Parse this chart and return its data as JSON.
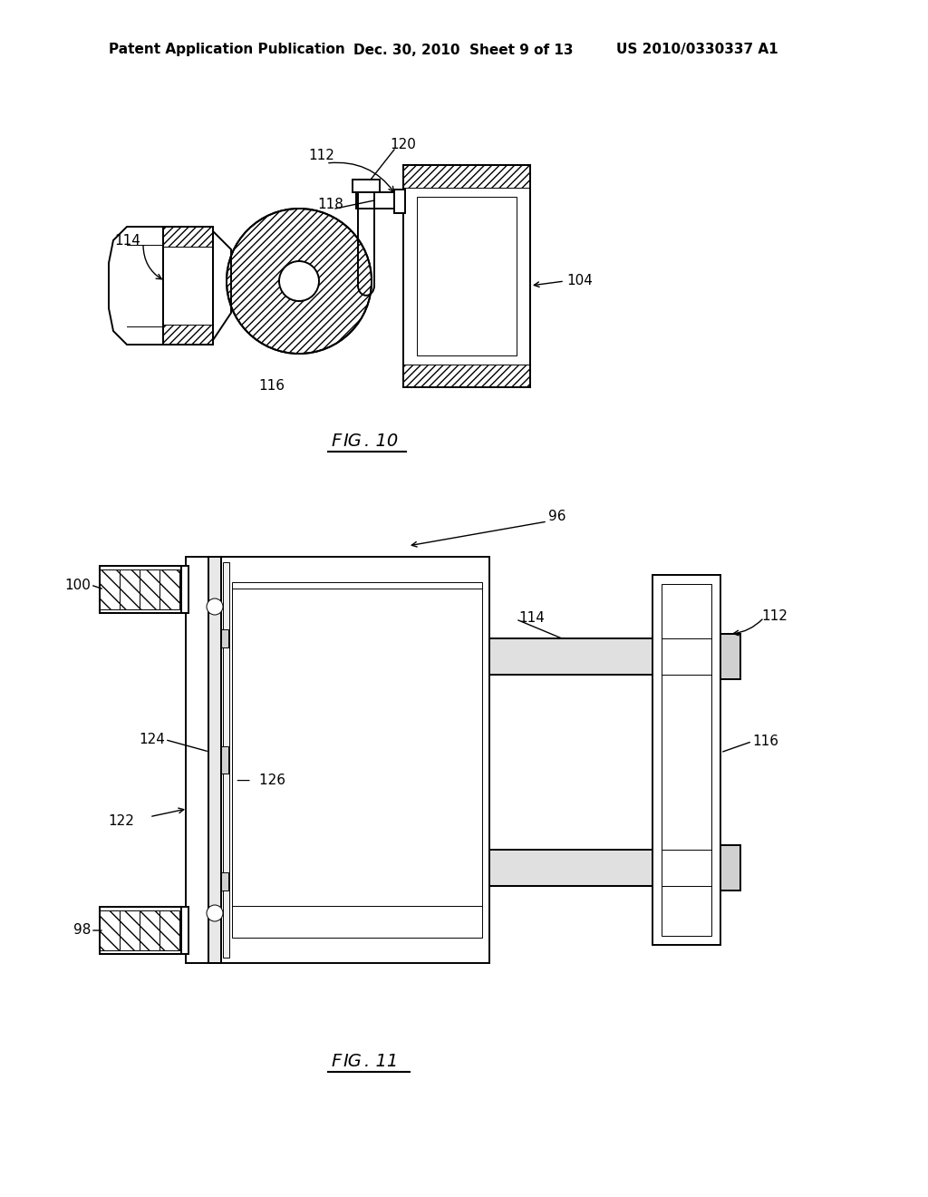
{
  "bg_color": "#ffffff",
  "line_color": "#000000",
  "header_left": "Patent Application Publication",
  "header_mid": "Dec. 30, 2010  Sheet 9 of 13",
  "header_right": "US 2010/0330337 A1",
  "fig10_caption": "FIG. 10",
  "fig11_caption": "FIG. 11",
  "label_fontsize": 11,
  "header_fontsize": 11,
  "caption_fontsize": 14
}
